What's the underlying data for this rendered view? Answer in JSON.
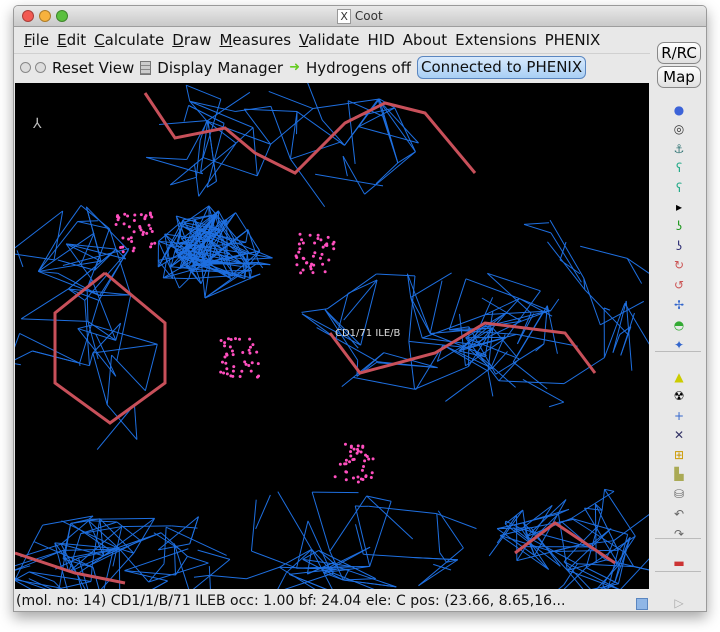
{
  "window": {
    "title": "Coot",
    "title_icon": "x11-icon"
  },
  "menu": [
    {
      "pre": "",
      "u": "F",
      "post": "ile"
    },
    {
      "pre": "",
      "u": "E",
      "post": "dit"
    },
    {
      "pre": "",
      "u": "C",
      "post": "alculate"
    },
    {
      "pre": "",
      "u": "D",
      "post": "raw"
    },
    {
      "pre": "",
      "u": "M",
      "post": "easures"
    },
    {
      "pre": "",
      "u": "V",
      "post": "alidate"
    },
    {
      "pre": "HID",
      "u": "",
      "post": ""
    },
    {
      "pre": "About",
      "u": "",
      "post": ""
    },
    {
      "pre": "Extensions",
      "u": "",
      "post": ""
    },
    {
      "pre": "PHENIX",
      "u": "",
      "post": ""
    }
  ],
  "toolbar": {
    "reset_view": "Reset View",
    "display_manager": "Display Manager",
    "hydrogens": "Hydrogens off",
    "connected": "Connected to PHENIX"
  },
  "side": {
    "rrc": "R/RC",
    "map": "Map"
  },
  "canvas": {
    "atom_label": "CD1/71 ILE/B"
  },
  "status": {
    "text": "(mol. no: 14)  CD1/1/B/71 ILEB occ:  1.00 bf: 24.04 ele:  C pos: (23.66, 8.65,16..."
  },
  "colors": {
    "mesh": "#1e6fe0",
    "bond": "#c8505a",
    "dots": "#ff4fbf",
    "accent": "#a9cff4"
  }
}
